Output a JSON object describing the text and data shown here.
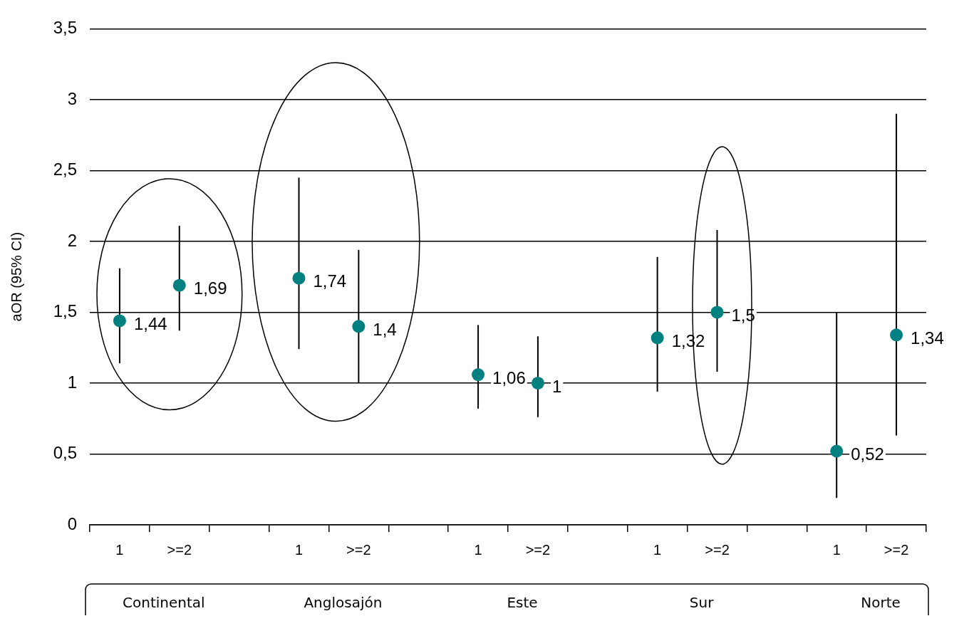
{
  "chart_data": {
    "type": "scatter",
    "ylabel": "aOR (95% CI)",
    "categories": [
      "1",
      ">=2",
      null,
      "1",
      ">=2",
      null,
      "1",
      ">=2",
      null,
      "1",
      ">=2",
      null,
      "1",
      ">=2"
    ],
    "series": [
      {
        "color": "#008080",
        "values": [
          1.44,
          1.69,
          null,
          1.74,
          1.4,
          null,
          1.06,
          1,
          null,
          1.32,
          1.5,
          null,
          0.52,
          1.34
        ],
        "value_labels": [
          "1,44",
          "1,69",
          null,
          "1,74",
          "1,4",
          null,
          "1,06",
          "1",
          null,
          "1,32",
          "1,5",
          null,
          "0,52",
          "1,34"
        ],
        "errors": [
          [
            1.14,
            1.81
          ],
          [
            1.37,
            2.11
          ],
          null,
          [
            1.24,
            2.45
          ],
          [
            1.0,
            1.94
          ],
          null,
          [
            0.82,
            1.41
          ],
          [
            0.76,
            1.33
          ],
          null,
          [
            0.94,
            1.89
          ],
          [
            1.08,
            2.08
          ],
          null,
          [
            0.19,
            1.5
          ],
          [
            0.63,
            2.9
          ]
        ]
      }
    ],
    "ylim": [
      0,
      3.5
    ],
    "yticks": [
      0,
      {
        "value": 0.5,
        "label": "0,5"
      },
      1,
      {
        "value": 1.5,
        "label": "1,5"
      },
      2,
      {
        "value": 2.5,
        "label": "2,5"
      },
      3,
      {
        "value": 3.5,
        "label": "3,5"
      }
    ],
    "annotations": [
      "Continental",
      "Anglosajón",
      "Este",
      "Sur",
      "Norte"
    ],
    "grid": "y",
    "legend": false,
    "marker": "circle"
  }
}
